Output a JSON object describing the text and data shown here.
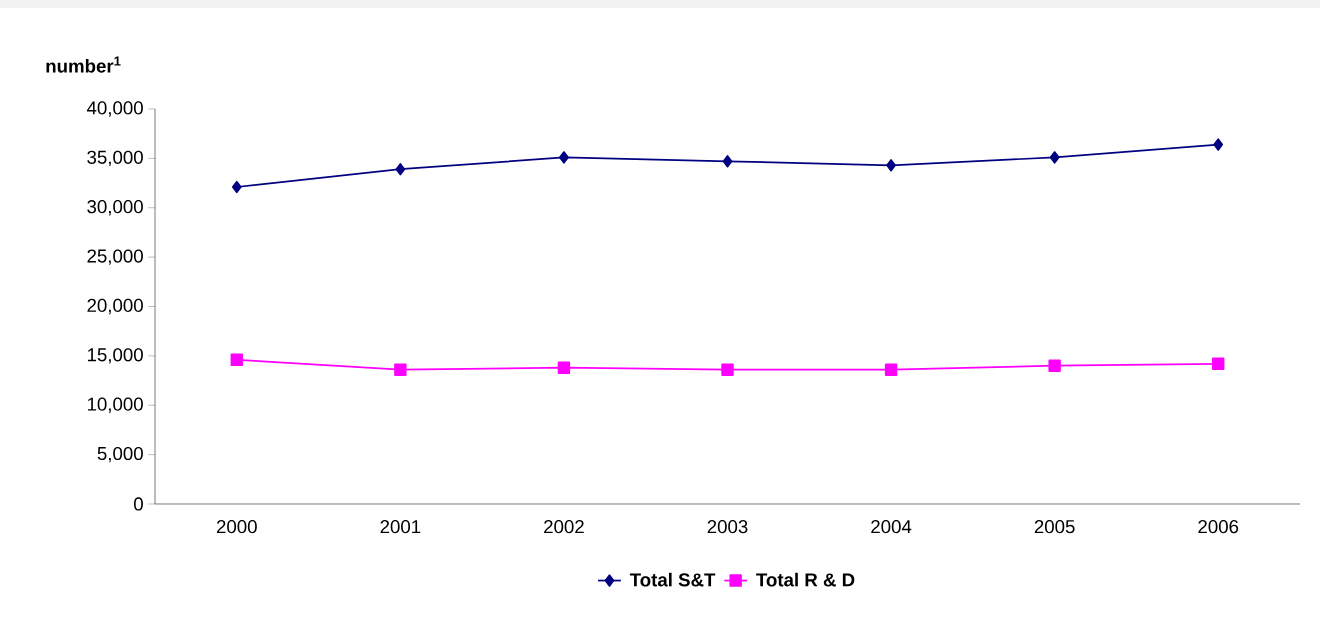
{
  "chart_data": {
    "type": "line",
    "ylabel": "number$^{1}$",
    "categories": [
      "2000",
      "2001",
      "2002",
      "2003",
      "2004",
      "2005",
      "2006"
    ],
    "series": [
      {
        "name": "Total S&T",
        "color": "#000080",
        "marker": "diamond",
        "values": [
          32100,
          33900,
          35100,
          34700,
          34300,
          35100,
          36400
        ]
      },
      {
        "name": "Total R & D",
        "color": "#ff00ff",
        "marker": "square",
        "values": [
          14600,
          13600,
          13800,
          13600,
          13600,
          14000,
          14200
        ]
      }
    ],
    "ylim": [
      0,
      40000
    ],
    "yticks": [
      {
        "value": 0,
        "label": "0"
      },
      {
        "value": 5000,
        "label": "5,000"
      },
      {
        "value": 10000,
        "label": "10,000"
      },
      {
        "value": 15000,
        "label": "15,000"
      },
      {
        "value": 20000,
        "label": "20,000"
      },
      {
        "value": 25000,
        "label": "25,000"
      },
      {
        "value": 30000,
        "label": "30,000"
      },
      {
        "value": 35000,
        "label": "35,000"
      },
      {
        "value": 40000,
        "label": "40,000"
      }
    ],
    "grid": false,
    "legend": "bottom",
    "line_style": "solid"
  }
}
